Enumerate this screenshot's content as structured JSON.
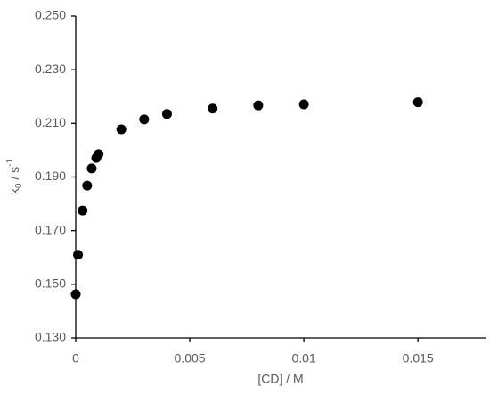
{
  "chart_data": {
    "type": "scatter",
    "x_label": "[CD] / M",
    "y_label": [
      "k",
      "0",
      " / s",
      "-1"
    ],
    "color": "#000000",
    "x": [
      0,
      0.0001,
      0.0003,
      0.0005,
      0.0007,
      0.0009,
      0.001,
      0.002,
      0.003,
      0.004,
      0.006,
      0.008,
      0.01,
      0.015
    ],
    "values": [
      0.1463,
      0.161,
      0.1775,
      0.1868,
      0.1932,
      0.1971,
      0.1985,
      0.2078,
      0.2115,
      0.2135,
      0.2155,
      0.2167,
      0.2171,
      0.2179
    ],
    "xlim": [
      0,
      0.018
    ],
    "ylim": [
      0.13,
      0.25
    ],
    "xticks": [
      0,
      0.005,
      0.01,
      0.015
    ],
    "yticks": [
      {
        "value": 0.13,
        "label": "0.130"
      },
      {
        "value": 0.15,
        "label": "0.150"
      },
      {
        "value": 0.17,
        "label": "0.170"
      },
      {
        "value": 0.19,
        "label": "0.190"
      },
      {
        "value": 0.21,
        "label": "0.210"
      },
      {
        "value": 0.23,
        "label": "0.230"
      },
      {
        "value": 0.25,
        "label": "0.250"
      }
    ],
    "grid": false
  }
}
